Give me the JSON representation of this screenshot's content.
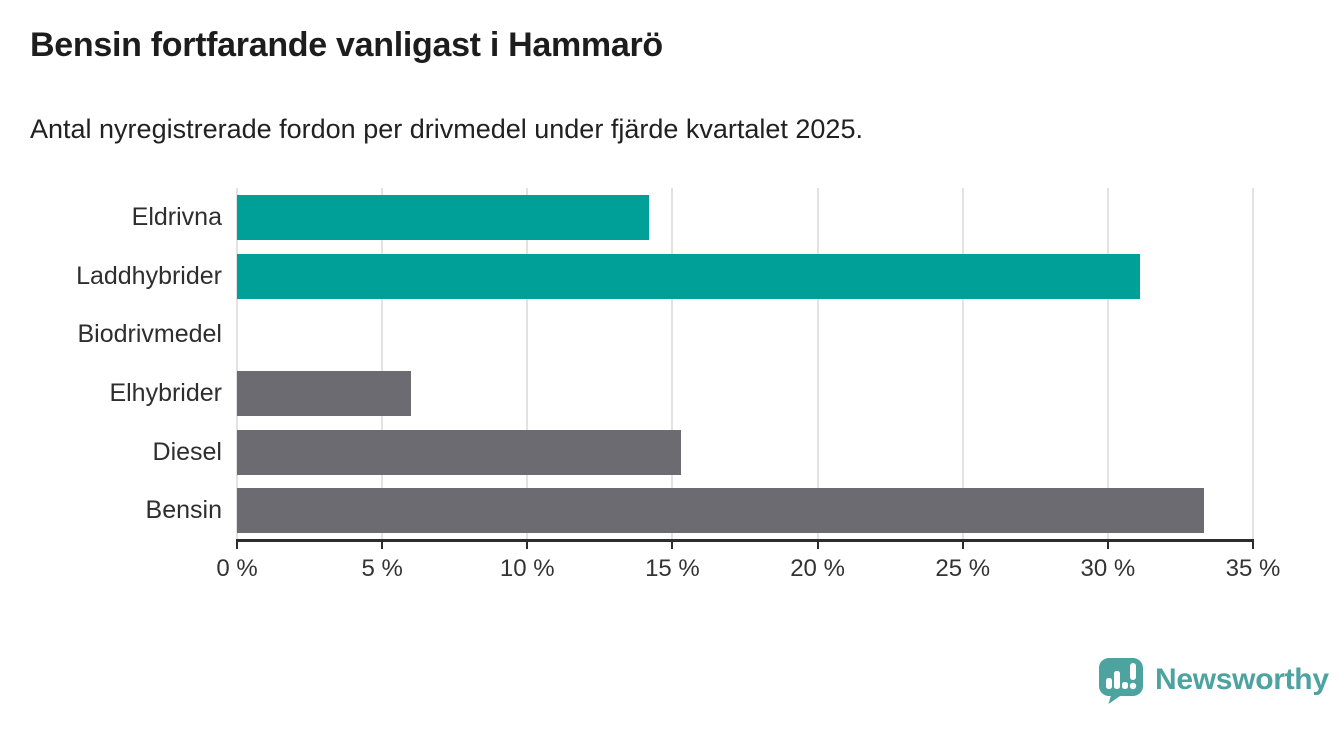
{
  "header": {
    "title": "Bensin fortfarande vanligast i Hammarö",
    "subtitle": "Antal nyregistrerade fordon per drivmedel under fjärde kvartalet 2025."
  },
  "chart_data": {
    "type": "bar",
    "orientation": "horizontal",
    "title": "Bensin fortfarande vanligast i Hammarö",
    "subtitle": "Antal nyregistrerade fordon per drivmedel under fjärde kvartalet 2025.",
    "categories": [
      "Eldrivna",
      "Laddhybrider",
      "Biodrivmedel",
      "Elhybrider",
      "Diesel",
      "Bensin"
    ],
    "values": [
      14.2,
      31.1,
      0,
      6.0,
      15.3,
      33.3
    ],
    "unit": "%",
    "bar_colors": [
      "#00a099",
      "#00a099",
      "#00a099",
      "#6b6b71",
      "#6b6b71",
      "#6b6b71"
    ],
    "xlim": [
      0,
      35
    ],
    "x_tick_values": [
      0,
      5,
      10,
      15,
      20,
      25,
      30,
      35
    ],
    "x_tick_labels": [
      "0 %",
      "5 %",
      "10 %",
      "15 %",
      "20 %",
      "25 %",
      "30 %",
      "35 %"
    ],
    "xlabel": "",
    "ylabel": "",
    "grid": true,
    "legend_position": "none"
  },
  "branding": {
    "logo_text": "Newsworthy"
  },
  "colors": {
    "teal_bar": "#00a099",
    "gray_bar": "#6b6b71",
    "gridline": "#e2e2e2",
    "axis_line": "#2c2c2c",
    "logo_teal": "#4ca3a0",
    "title_text": "#1d1d1d"
  }
}
